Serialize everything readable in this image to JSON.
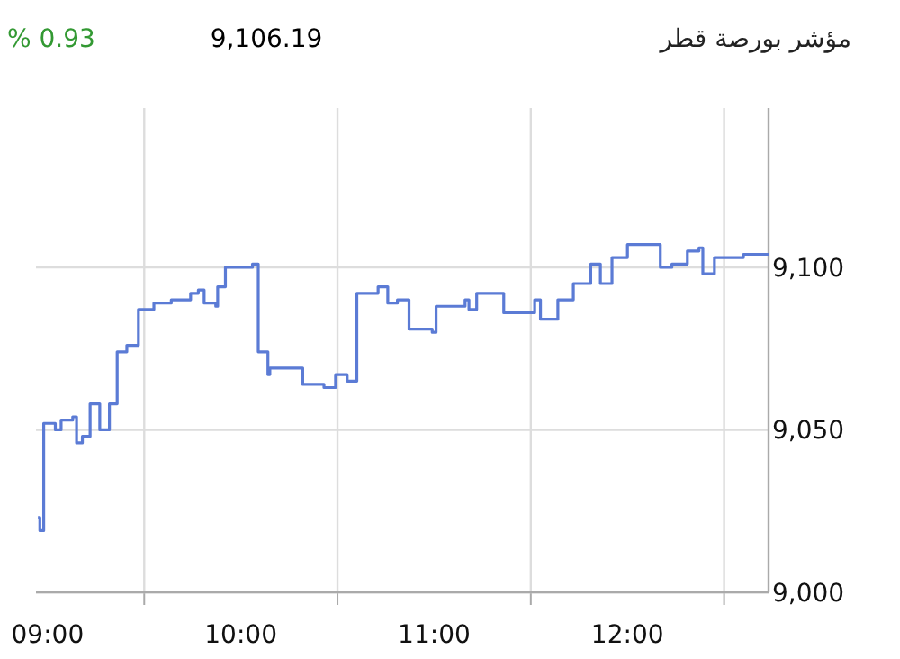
{
  "chart_data": {
    "type": "step",
    "title": "مؤشر بورصة قطر",
    "annotations": [
      "9,106.19",
      "% 0.93"
    ],
    "x": [
      8.95,
      8.96,
      8.98,
      9.04,
      9.07,
      9.13,
      9.15,
      9.18,
      9.22,
      9.27,
      9.32,
      9.36,
      9.41,
      9.47,
      9.55,
      9.64,
      9.74,
      9.78,
      9.81,
      9.87,
      9.88,
      9.92,
      10.06,
      10.09,
      10.14,
      10.15,
      10.32,
      10.43,
      10.49,
      10.55,
      10.6,
      10.71,
      10.76,
      10.81,
      10.87,
      10.99,
      11.01,
      11.16,
      11.18,
      11.22,
      11.36,
      11.52,
      11.55,
      11.64,
      11.72,
      11.81,
      11.86,
      11.92,
      12.0,
      12.15,
      12.17,
      12.23,
      12.31,
      12.37,
      12.39,
      12.45,
      12.6,
      12.73
    ],
    "series": [
      {
        "color": "#5b7bd5",
        "values": [
          9023,
          9019,
          9052,
          9050,
          9053,
          9054,
          9046,
          9048,
          9058,
          9050,
          9058,
          9074,
          9076,
          9087,
          9089,
          9090,
          9092,
          9093,
          9089,
          9088,
          9094,
          9100,
          9101,
          9074,
          9067,
          9069,
          9064,
          9063,
          9067,
          9065,
          9092,
          9094,
          9089,
          9090,
          9081,
          9080,
          9088,
          9090,
          9087,
          9092,
          9086,
          9090,
          9084,
          9090,
          9095,
          9101,
          9095,
          9103,
          9107,
          9107,
          9100,
          9101,
          9105,
          9106,
          9098,
          9103,
          9104,
          9104
        ]
      }
    ],
    "xlim": [
      8.94,
      12.73
    ],
    "ylim": [
      9000,
      9149
    ],
    "xticks": [
      {
        "value": 9,
        "label": "09:00"
      },
      {
        "value": 9.5,
        "label": null
      },
      {
        "value": 10,
        "label": "10:00"
      },
      {
        "value": 10.5,
        "label": null
      },
      {
        "value": 11,
        "label": "11:00"
      },
      {
        "value": 11.5,
        "label": null
      },
      {
        "value": 12,
        "label": "12:00"
      },
      {
        "value": 12.5,
        "label": null
      }
    ],
    "yticks": [
      {
        "value": 9000,
        "label": "9,000"
      },
      {
        "value": 9050,
        "label": "9,050"
      },
      {
        "value": 9100,
        "label": "9,100"
      }
    ],
    "grid": true,
    "marker": "none",
    "line_style": "solid"
  }
}
